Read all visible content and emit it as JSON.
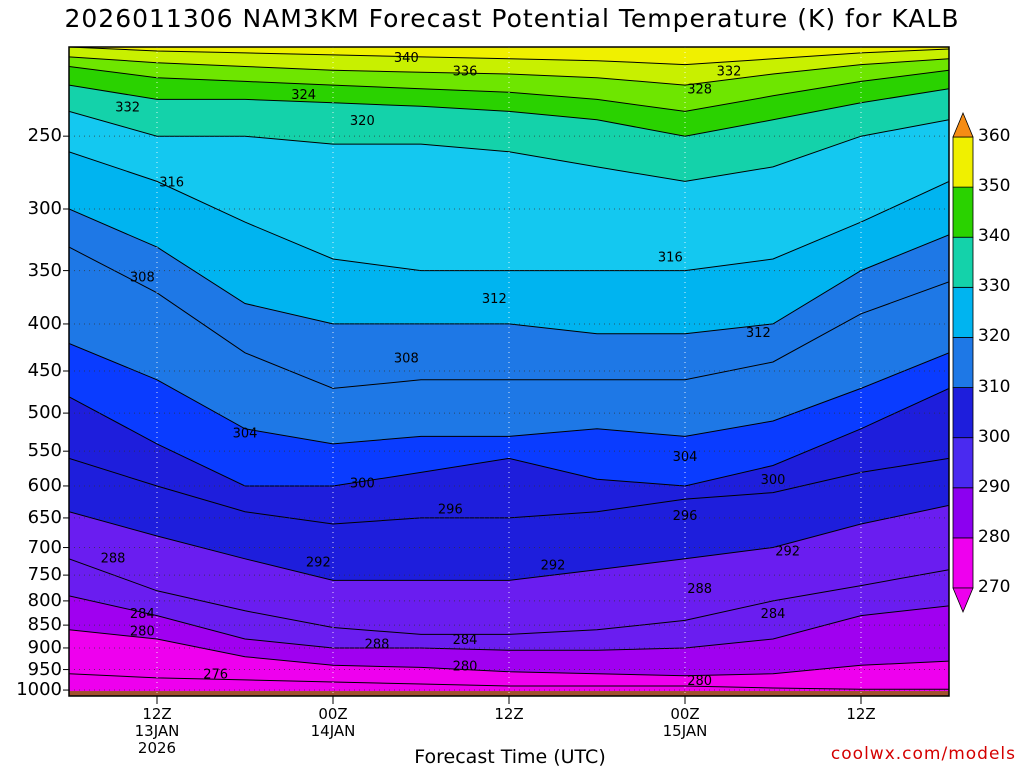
{
  "chart_data": {
    "type": "heatmap",
    "title": "2026011306 NAM3KM Forecast Potential Temperature (K) for KALB",
    "xlabel": "Forecast Time (UTC)",
    "ylabel": "",
    "credit": "coolwx.com/models",
    "y_scale": "log",
    "ylim": [
      1000,
      200
    ],
    "y_ticks": [
      250,
      300,
      350,
      400,
      450,
      500,
      550,
      600,
      650,
      700,
      750,
      800,
      850,
      900,
      950,
      1000
    ],
    "x_range_hours": [
      0,
      60
    ],
    "x_ticks": [
      {
        "hour": 6,
        "lines": [
          "12Z",
          "13JAN",
          "2026"
        ]
      },
      {
        "hour": 18,
        "lines": [
          "00Z",
          "14JAN"
        ]
      },
      {
        "hour": 30,
        "lines": [
          "12Z"
        ]
      },
      {
        "hour": 42,
        "lines": [
          "00Z",
          "15JAN"
        ]
      },
      {
        "hour": 54,
        "lines": [
          "12Z"
        ]
      }
    ],
    "colorbar": {
      "levels": [
        270,
        280,
        290,
        300,
        310,
        320,
        330,
        340,
        350,
        360
      ],
      "colors": [
        "#ee00ee",
        "#a000f0",
        "#6a1df0",
        "#1e1edc",
        "#0a3cff",
        "#1e78e6",
        "#00b4f0",
        "#14d2aa",
        "#2ad200",
        "#9be600",
        "#f0f000",
        "#f5be14",
        "#f58c14"
      ]
    },
    "hours": [
      0,
      6,
      12,
      18,
      24,
      30,
      36,
      42,
      48,
      54,
      60
    ],
    "isotherm_pressures": {
      "276": [
        960,
        970,
        975,
        980,
        985,
        990,
        990,
        990,
        995,
        998,
        998
      ],
      "280": [
        860,
        880,
        920,
        940,
        945,
        955,
        960,
        965,
        960,
        940,
        930
      ],
      "284": [
        790,
        830,
        880,
        900,
        900,
        905,
        905,
        900,
        880,
        830,
        810
      ],
      "288": [
        720,
        780,
        820,
        855,
        870,
        870,
        860,
        840,
        800,
        770,
        740
      ],
      "292": [
        640,
        680,
        720,
        760,
        760,
        760,
        740,
        720,
        700,
        660,
        630
      ],
      "296": [
        560,
        600,
        640,
        660,
        650,
        650,
        640,
        620,
        610,
        580,
        560
      ],
      "300": [
        480,
        540,
        600,
        600,
        580,
        560,
        590,
        600,
        570,
        520,
        470
      ],
      "304": [
        420,
        460,
        520,
        540,
        530,
        530,
        520,
        530,
        510,
        470,
        430
      ],
      "308": [
        330,
        370,
        430,
        470,
        460,
        460,
        460,
        460,
        440,
        390,
        360
      ],
      "312": [
        300,
        330,
        380,
        400,
        400,
        400,
        410,
        410,
        400,
        350,
        320
      ],
      "316": [
        260,
        280,
        310,
        340,
        350,
        350,
        350,
        350,
        340,
        310,
        280
      ],
      "320": [
        235,
        250,
        250,
        255,
        255,
        260,
        270,
        280,
        270,
        250,
        240
      ],
      "324": [
        220,
        228,
        228,
        230,
        232,
        235,
        240,
        250,
        240,
        230,
        222
      ],
      "328": [
        210,
        216,
        218,
        220,
        222,
        224,
        228,
        235,
        226,
        218,
        212
      ],
      "332": [
        205,
        208,
        210,
        212,
        213,
        214,
        216,
        220,
        214,
        209,
        206
      ],
      "336": [
        200,
        202,
        203,
        204,
        205,
        206,
        207,
        209,
        206,
        203,
        201
      ]
    },
    "contour_labels": [
      {
        "value": "340",
        "hour": 23,
        "p": 205
      },
      {
        "value": "336",
        "hour": 27,
        "p": 212
      },
      {
        "value": "332",
        "hour": 45,
        "p": 212
      },
      {
        "value": "332",
        "hour": 4,
        "p": 232
      },
      {
        "value": "324",
        "hour": 16,
        "p": 225
      },
      {
        "value": "328",
        "hour": 43,
        "p": 222
      },
      {
        "value": "320",
        "hour": 20,
        "p": 240
      },
      {
        "value": "316",
        "hour": 7,
        "p": 280
      },
      {
        "value": "316",
        "hour": 41,
        "p": 338
      },
      {
        "value": "308",
        "hour": 5,
        "p": 355
      },
      {
        "value": "312",
        "hour": 29,
        "p": 375
      },
      {
        "value": "312",
        "hour": 47,
        "p": 408
      },
      {
        "value": "308",
        "hour": 23,
        "p": 435
      },
      {
        "value": "304",
        "hour": 12,
        "p": 525
      },
      {
        "value": "304",
        "hour": 42,
        "p": 557
      },
      {
        "value": "300",
        "hour": 20,
        "p": 595
      },
      {
        "value": "300",
        "hour": 48,
        "p": 590
      },
      {
        "value": "296",
        "hour": 26,
        "p": 635
      },
      {
        "value": "296",
        "hour": 42,
        "p": 645
      },
      {
        "value": "292",
        "hour": 17,
        "p": 725
      },
      {
        "value": "292",
        "hour": 33,
        "p": 730
      },
      {
        "value": "292",
        "hour": 49,
        "p": 705
      },
      {
        "value": "288",
        "hour": 3,
        "p": 718
      },
      {
        "value": "288",
        "hour": 43,
        "p": 775
      },
      {
        "value": "288",
        "hour": 21,
        "p": 890
      },
      {
        "value": "284",
        "hour": 5,
        "p": 825
      },
      {
        "value": "284",
        "hour": 27,
        "p": 880
      },
      {
        "value": "284",
        "hour": 48,
        "p": 825
      },
      {
        "value": "280",
        "hour": 5,
        "p": 862
      },
      {
        "value": "280",
        "hour": 27,
        "p": 940
      },
      {
        "value": "280",
        "hour": 43,
        "p": 975
      },
      {
        "value": "276",
        "hour": 10,
        "p": 960
      }
    ]
  }
}
